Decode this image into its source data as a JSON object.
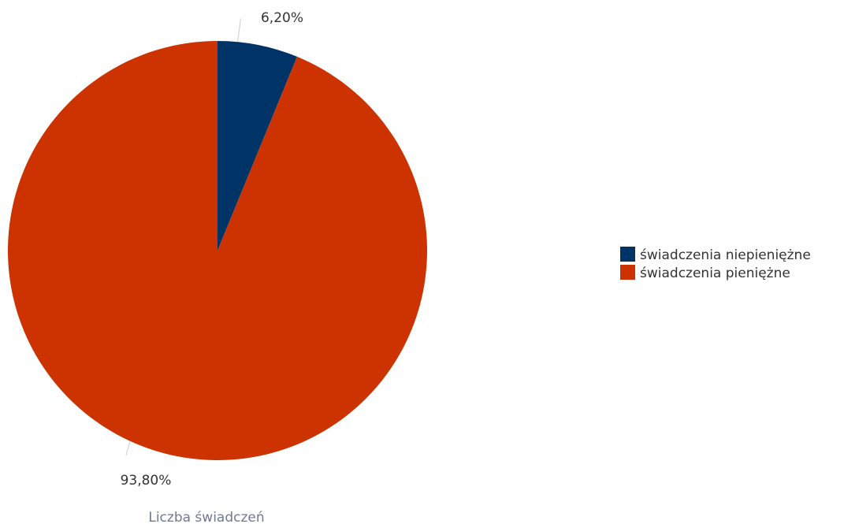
{
  "chart_data": {
    "type": "pie",
    "title": "",
    "caption": "Liczba świadczeń",
    "slices": [
      {
        "label": "świadczenia niepieniężne",
        "value": 6.2,
        "display": "6,20%",
        "color": "#003366"
      },
      {
        "label": "świadczenia pieniężne",
        "value": 93.8,
        "display": "93,80%",
        "color": "#cc3300"
      }
    ],
    "start_angle_deg": 0,
    "direction": "clockwise",
    "legend_position": "right"
  }
}
